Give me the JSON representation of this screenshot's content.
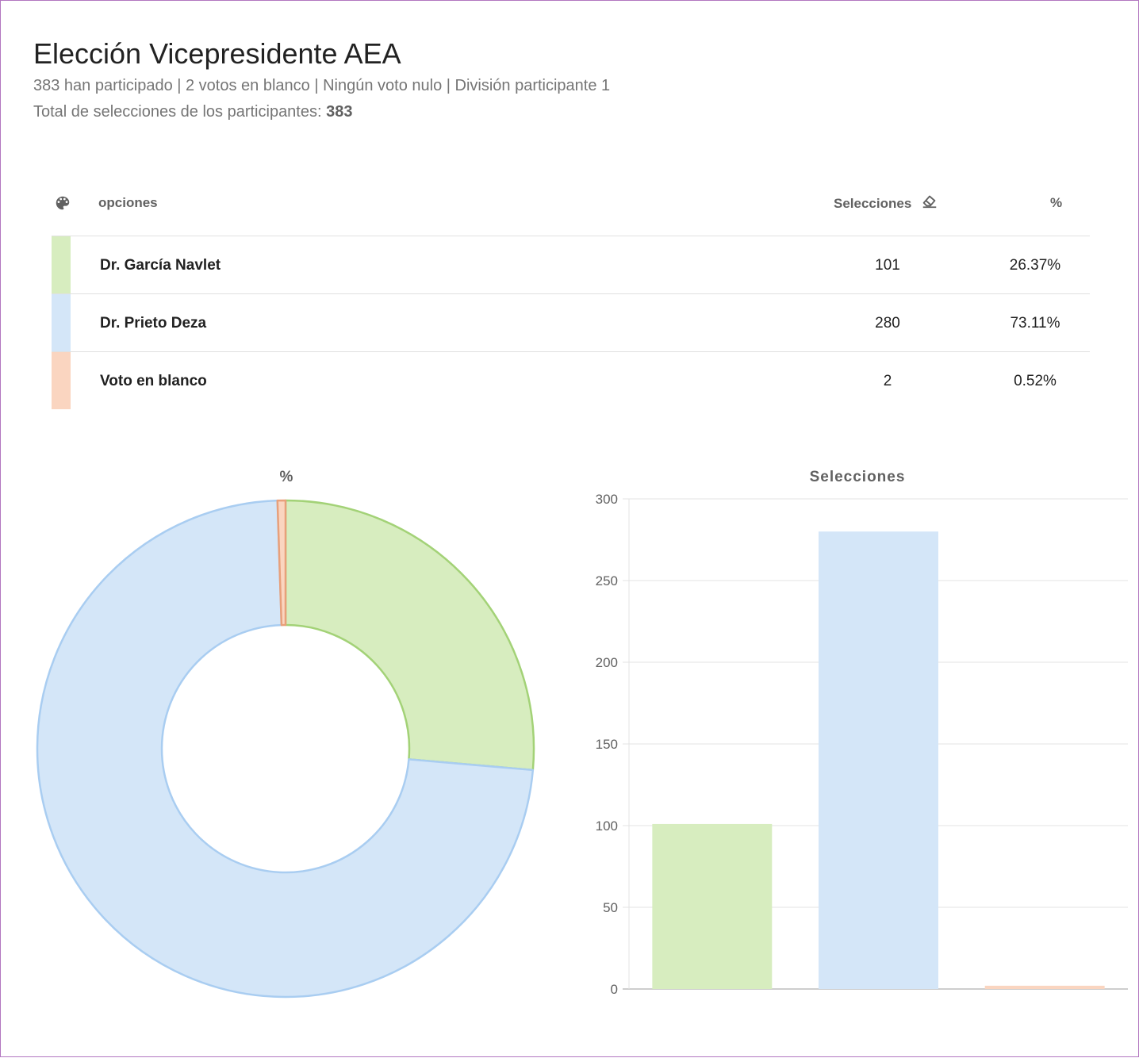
{
  "header": {
    "title": "Elección Vicepresidente AEA",
    "summary": "383 han participado | 2 votos en blanco | Ningún voto nulo | División participante 1",
    "total_label": "Total de selecciones de los participantes: ",
    "total_value": "383"
  },
  "table": {
    "columns": {
      "palette_icon": "palette-icon",
      "options": "opciones",
      "selections": "Selecciones",
      "eraser_icon": "eraser-icon",
      "percent": "%"
    },
    "rows": [
      {
        "name": "Dr. García Navlet",
        "votes": "101",
        "percent": "26.37%",
        "color": "#d7edbf"
      },
      {
        "name": "Dr. Prieto Deza",
        "votes": "280",
        "percent": "73.11%",
        "color": "#d4e6f8"
      },
      {
        "name": "Voto en blanco",
        "votes": "2",
        "percent": "0.52%",
        "color": "#fad5c0"
      }
    ]
  },
  "chart_data": [
    {
      "type": "pie",
      "title": "%",
      "categories": [
        "Dr. García Navlet",
        "Dr. Prieto Deza",
        "Voto en blanco"
      ],
      "values": [
        26.37,
        73.11,
        0.52
      ],
      "fill_colors": [
        "#d7edbf",
        "#d4e6f8",
        "#fad5c0"
      ],
      "stroke_colors": [
        "#a3d277",
        "#a9cdf1",
        "#e8a07b"
      ]
    },
    {
      "type": "bar",
      "title": "Selecciones",
      "categories": [
        "Dr. García Navlet",
        "Dr. Prieto Deza",
        "Voto en blanco"
      ],
      "values": [
        101,
        280,
        2
      ],
      "ylim": [
        0,
        300
      ],
      "yticks": [
        0,
        50,
        100,
        150,
        200,
        250,
        300
      ],
      "fill_colors": [
        "#d7edbf",
        "#d4e6f8",
        "#fad5c0"
      ],
      "grid": true
    }
  ]
}
